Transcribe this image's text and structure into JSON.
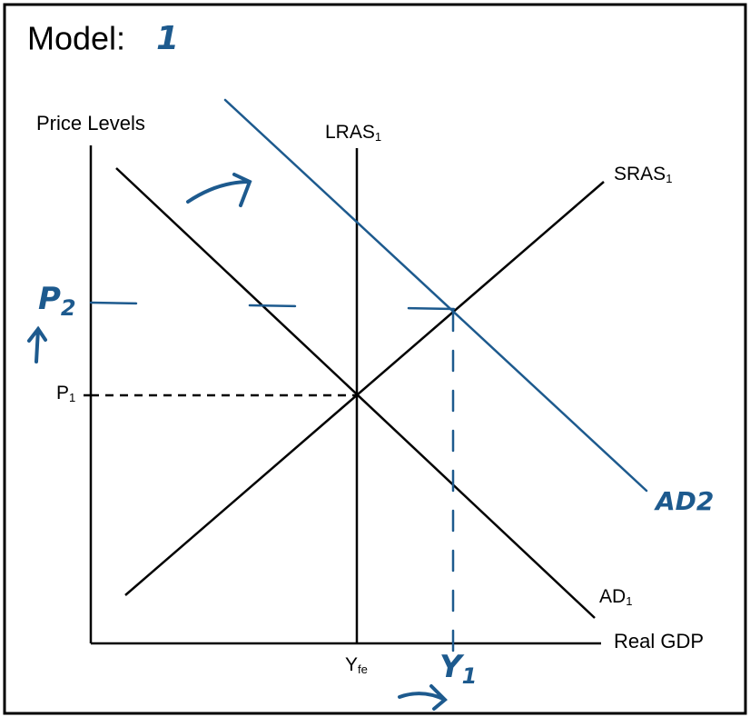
{
  "title": "Model:",
  "model_number": "1",
  "axes": {
    "y_label": "Price Levels",
    "x_label": "Real GDP"
  },
  "curves": {
    "lras": {
      "label": "LRAS",
      "sub": "1"
    },
    "sras": {
      "label": "SRAS",
      "sub": "1"
    },
    "ad1": {
      "label": "AD",
      "sub": "1"
    },
    "ad2": {
      "label": "AD",
      "sub": "2"
    }
  },
  "levels": {
    "p1": {
      "label": "P",
      "sub": "1"
    },
    "p2": {
      "label": "P",
      "sub": "2"
    },
    "yfe": {
      "label": "Y",
      "sub": "fe"
    },
    "y1": {
      "label": "Y",
      "sub": "1"
    }
  }
}
